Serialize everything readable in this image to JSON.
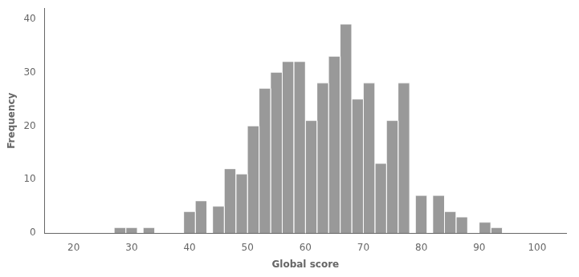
{
  "chart_data": {
    "type": "histogram",
    "xlabel": "Global score",
    "ylabel": "Frequency",
    "bin_left_edges": [
      27,
      29,
      32,
      39,
      41,
      44,
      46,
      48,
      50,
      52,
      54,
      56,
      58,
      60,
      62,
      64,
      66,
      68,
      70,
      72,
      74,
      76,
      79,
      82,
      84,
      86,
      90,
      92
    ],
    "bin_width": 2,
    "values": [
      1,
      1,
      1,
      4,
      6,
      5,
      12,
      11,
      20,
      27,
      30,
      32,
      32,
      21,
      28,
      33,
      39,
      25,
      28,
      13,
      21,
      28,
      7,
      7,
      4,
      3,
      2,
      1
    ],
    "color": "#999999",
    "xlim": [
      15,
      105
    ],
    "xticks": [
      20,
      30,
      40,
      50,
      60,
      70,
      80,
      90,
      100
    ],
    "ylim": [
      0,
      42
    ],
    "yticks": [
      0,
      10,
      20,
      30,
      40
    ],
    "grid": false
  }
}
